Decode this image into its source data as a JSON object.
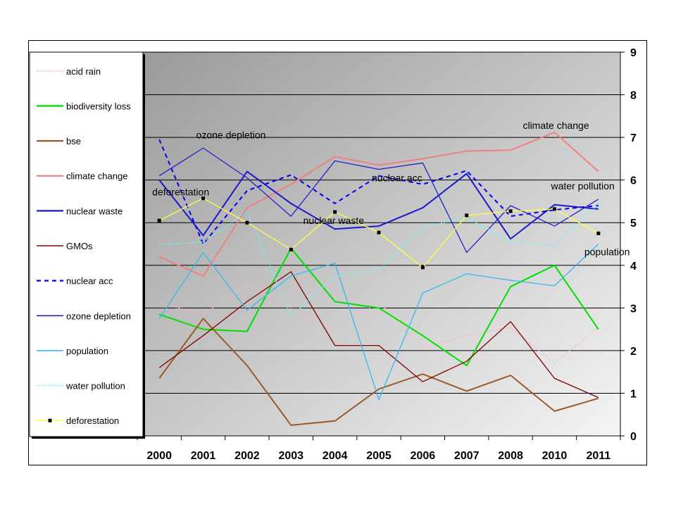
{
  "chart_data": {
    "type": "line",
    "categories": [
      "2000",
      "2001",
      "2002",
      "2003",
      "2004",
      "2005",
      "2006",
      "2007",
      "2008",
      "2010",
      "2011"
    ],
    "ylim": [
      0,
      9
    ],
    "y_ticks": [
      "0",
      "1",
      "2",
      "3",
      "4",
      "5",
      "6",
      "7",
      "8",
      "9"
    ],
    "y_axis_side": "right",
    "grid": true,
    "legend_position": "left",
    "series": [
      {
        "name": "acid rain",
        "color": "#ffb6b6",
        "style": "dotted",
        "values": [
          3.12,
          2.85,
          3.55,
          3.0,
          2.45,
          3.15,
          2.05,
          2.35,
          2.55,
          1.7,
          2.55
        ]
      },
      {
        "name": "biodiversity loss",
        "color": "#00e000",
        "style": "solid",
        "values": [
          2.85,
          2.5,
          2.45,
          4.4,
          3.15,
          3.0,
          2.35,
          1.65,
          3.5,
          4.0,
          2.5
        ]
      },
      {
        "name": "bse",
        "color": "#9b5a28",
        "style": "solid",
        "values": [
          1.35,
          2.75,
          1.65,
          0.25,
          0.35,
          1.1,
          1.45,
          1.05,
          1.42,
          0.58,
          0.88
        ]
      },
      {
        "name": "climate change",
        "color": "#f08080",
        "style": "solid",
        "values": [
          4.2,
          3.75,
          5.35,
          5.9,
          6.55,
          6.35,
          6.5,
          6.68,
          6.7,
          7.12,
          6.2
        ]
      },
      {
        "name": "nuclear waste",
        "color": "#1a1acc",
        "style": "solid",
        "values": [
          6.0,
          4.7,
          6.2,
          5.45,
          4.85,
          4.92,
          5.35,
          6.15,
          4.62,
          5.42,
          5.32
        ]
      },
      {
        "name": "GMOs",
        "color": "#800000",
        "style": "solid",
        "values": [
          1.6,
          2.35,
          3.15,
          3.85,
          2.12,
          2.12,
          1.27,
          1.75,
          2.68,
          1.35,
          0.9
        ]
      },
      {
        "name": "nuclear acc",
        "color": "#0000ee",
        "style": "dashed",
        "values": [
          6.95,
          4.5,
          5.75,
          6.12,
          5.45,
          6.1,
          5.9,
          6.22,
          5.15,
          5.3,
          5.4
        ]
      },
      {
        "name": "ozone depletion",
        "color": "#2222cc",
        "style": "solid",
        "values": [
          6.1,
          6.75,
          6.05,
          5.15,
          6.45,
          6.25,
          6.4,
          4.3,
          5.4,
          4.92,
          5.55
        ]
      },
      {
        "name": "population",
        "color": "#33bbee",
        "style": "solid",
        "values": [
          2.75,
          4.3,
          2.95,
          3.75,
          4.05,
          0.85,
          3.35,
          3.8,
          3.65,
          3.52,
          4.5
        ]
      },
      {
        "name": "water pollution",
        "color": "#55ffff",
        "style": "dotted",
        "values": [
          4.48,
          4.55,
          5.25,
          2.8,
          3.75,
          3.9,
          4.9,
          5.12,
          4.55,
          4.45,
          5.45
        ]
      },
      {
        "name": "deforestation",
        "color": "#ffff44",
        "style": "solid-marker",
        "values": [
          5.05,
          5.57,
          5.0,
          4.37,
          5.25,
          4.77,
          3.95,
          5.17,
          5.27,
          5.32,
          4.75
        ]
      }
    ],
    "annotations": [
      {
        "text": "ozone depletion",
        "at_category": "2001",
        "at_value": 6.75
      },
      {
        "text": "deforestation",
        "at_category": "2000",
        "at_value": 5.57
      },
      {
        "text": "nuclear acc",
        "at_category": "2005",
        "at_value": 5.9
      },
      {
        "text": "nuclear waste",
        "at_category": "2004",
        "at_value": 5.1
      },
      {
        "text": "climate change",
        "at_category": "2010",
        "at_value": 7.12
      },
      {
        "text": "water pollution",
        "at_category": "2010",
        "at_value": 5.55
      },
      {
        "text": "population",
        "at_category": "2011",
        "at_value": 4.1
      }
    ]
  }
}
